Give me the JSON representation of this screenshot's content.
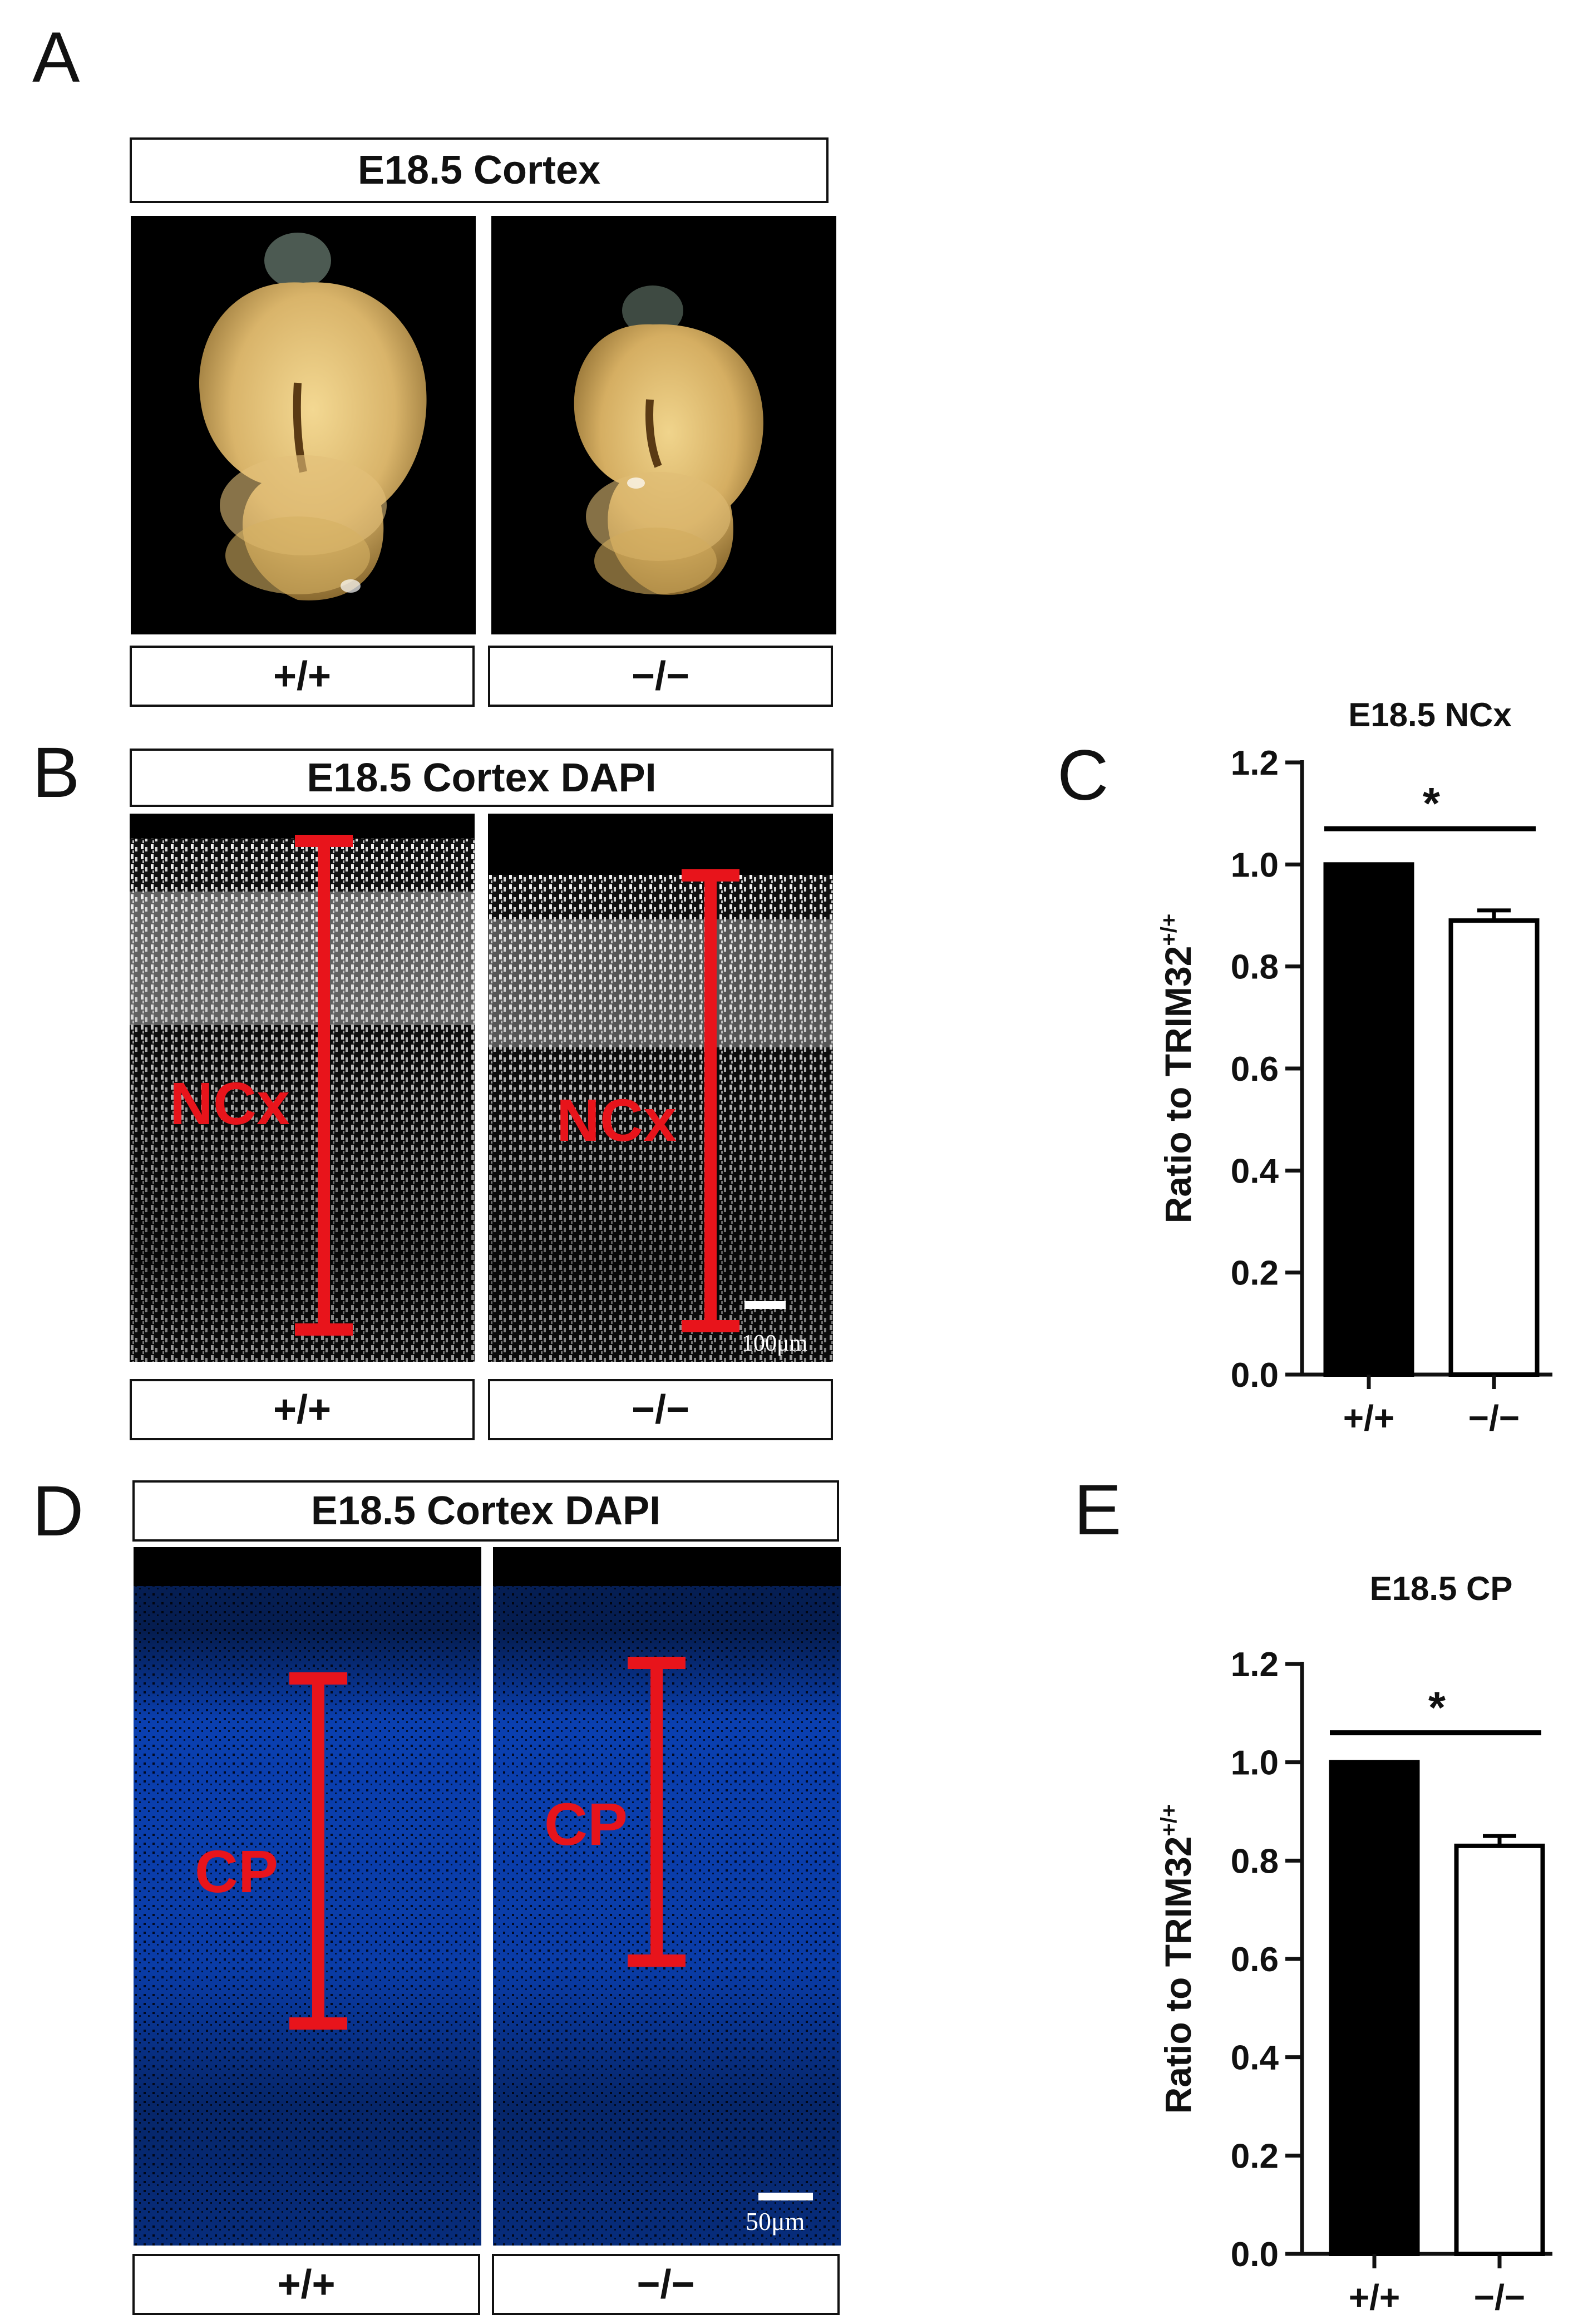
{
  "panels": {
    "A": {
      "letter": "A",
      "title": "E18.5  Cortex",
      "left_label": "+/+",
      "right_label": "−/−"
    },
    "B": {
      "letter": "B",
      "title": "E18.5 Cortex  DAPI",
      "region_left": "NCx",
      "region_right": "NCx",
      "scale_bar": "100μm",
      "left_label": "+/+",
      "right_label": "−/−"
    },
    "D": {
      "letter": "D",
      "title": "E18.5 Cortex  DAPI",
      "region_left": "CP",
      "region_right": "CP",
      "scale_bar": "50μm",
      "left_label": "+/+",
      "right_label": "−/−"
    },
    "C": {
      "letter": "C"
    },
    "E": {
      "letter": "E"
    }
  },
  "colors": {
    "marker_red": "#e8141b",
    "dapi_blue": "#0a3fb0",
    "brain_tan": "#d9b46a",
    "bar_black": "#000000"
  },
  "chart_data": [
    {
      "type": "bar",
      "title": "E18.5 NCx",
      "ylabel": "Ratio to TRIM32",
      "ylabel_sup": "+/+",
      "categories": [
        "+/+",
        "−/−"
      ],
      "values": [
        1.0,
        0.89
      ],
      "errors": [
        0,
        0.02
      ],
      "fills": [
        "black",
        "white"
      ],
      "ylim": [
        0,
        1.2
      ],
      "yticks": [
        "0.0",
        "0.2",
        "0.4",
        "0.6",
        "0.8",
        "1.0",
        "1.2"
      ],
      "significance": "*"
    },
    {
      "type": "bar",
      "title": "E18.5 CP",
      "ylabel": "Ratio to TRIM32",
      "ylabel_sup": "+/+",
      "categories": [
        "+/+",
        "−/−"
      ],
      "values": [
        1.0,
        0.83
      ],
      "errors": [
        0,
        0.02
      ],
      "fills": [
        "black",
        "white"
      ],
      "ylim": [
        0,
        1.2
      ],
      "yticks": [
        "0.0",
        "0.2",
        "0.4",
        "0.6",
        "0.8",
        "1.0",
        "1.2"
      ],
      "significance": "*"
    }
  ]
}
